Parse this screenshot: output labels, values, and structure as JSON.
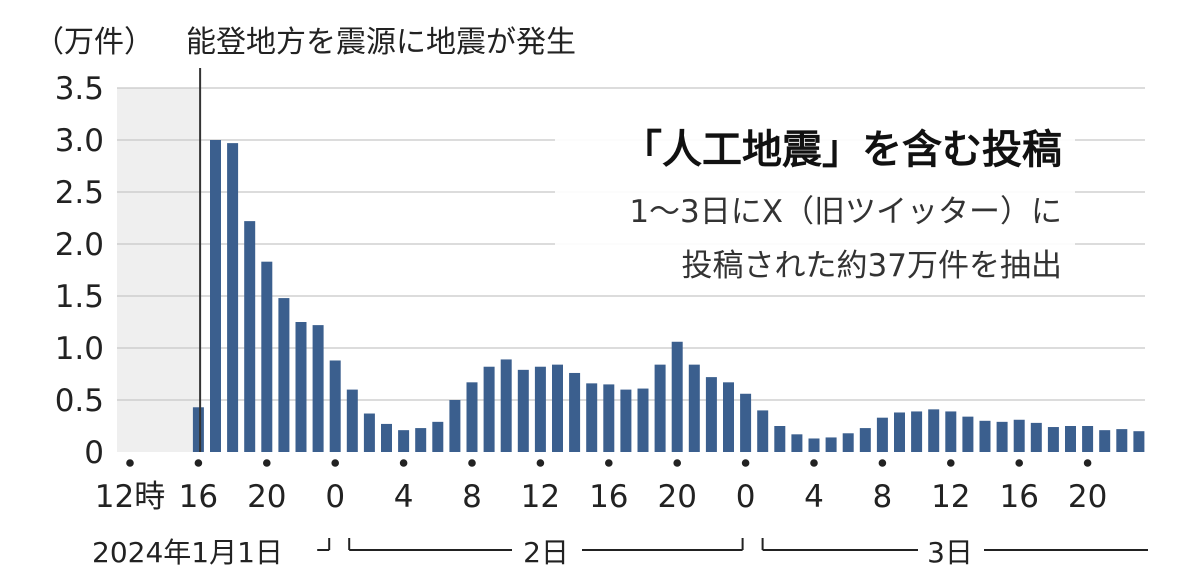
{
  "chart_data": {
    "type": "bar",
    "unit_label": "（万件）",
    "title": "能登地方を震源に地震が発生",
    "annotation_title": "「人工地震」を含む投稿",
    "annotation_lines": [
      "1〜3日にX（旧ツイッター）に",
      "投稿された約37万件を抽出"
    ],
    "ylim": [
      0,
      3.5
    ],
    "y_ticks": [
      "3.5",
      "3.0",
      "2.5",
      "2.0",
      "1.5",
      "1.0",
      "0.5",
      "0"
    ],
    "x_start_hour": 12,
    "x_tick_labels": [
      {
        "hour": 12,
        "label": "12時"
      },
      {
        "hour": 16,
        "label": "16"
      },
      {
        "hour": 20,
        "label": "20"
      },
      {
        "hour": 24,
        "label": "0"
      },
      {
        "hour": 28,
        "label": "4"
      },
      {
        "hour": 32,
        "label": "8"
      },
      {
        "hour": 36,
        "label": "12"
      },
      {
        "hour": 40,
        "label": "16"
      },
      {
        "hour": 44,
        "label": "20"
      },
      {
        "hour": 48,
        "label": "0"
      },
      {
        "hour": 52,
        "label": "4"
      },
      {
        "hour": 56,
        "label": "8"
      },
      {
        "hour": 60,
        "label": "12"
      },
      {
        "hour": 64,
        "label": "16"
      },
      {
        "hour": 68,
        "label": "20"
      }
    ],
    "day_labels": [
      "2024年1月1日",
      "2日",
      "3日"
    ],
    "earthquake_hour": 16.1,
    "bar_hours": [
      16,
      17,
      18,
      19,
      20,
      21,
      22,
      23,
      24,
      25,
      26,
      27,
      28,
      29,
      30,
      31,
      32,
      33,
      34,
      35,
      36,
      37,
      38,
      39,
      40,
      41,
      42,
      43,
      44,
      45,
      46,
      47,
      48,
      49,
      50,
      51,
      52,
      53,
      54,
      55,
      56,
      57,
      58,
      59,
      60,
      61,
      62,
      63,
      64,
      65,
      66,
      67,
      68,
      69,
      70,
      71
    ],
    "values": [
      0.43,
      3.0,
      2.97,
      2.22,
      1.83,
      1.48,
      1.25,
      1.22,
      0.88,
      0.6,
      0.37,
      0.27,
      0.21,
      0.23,
      0.29,
      0.5,
      0.67,
      0.82,
      0.89,
      0.79,
      0.82,
      0.84,
      0.76,
      0.66,
      0.65,
      0.6,
      0.61,
      0.84,
      1.06,
      0.84,
      0.72,
      0.67,
      0.56,
      0.4,
      0.25,
      0.17,
      0.13,
      0.14,
      0.18,
      0.23,
      0.33,
      0.38,
      0.39,
      0.41,
      0.39,
      0.34,
      0.3,
      0.29,
      0.31,
      0.28,
      0.24,
      0.25,
      0.25,
      0.21,
      0.22,
      0.2
    ],
    "colors": {
      "bar": "#3b5f8e",
      "pre_quake_shade": "#efefef",
      "grid": "#c8c8c8",
      "text": "#222222"
    }
  }
}
